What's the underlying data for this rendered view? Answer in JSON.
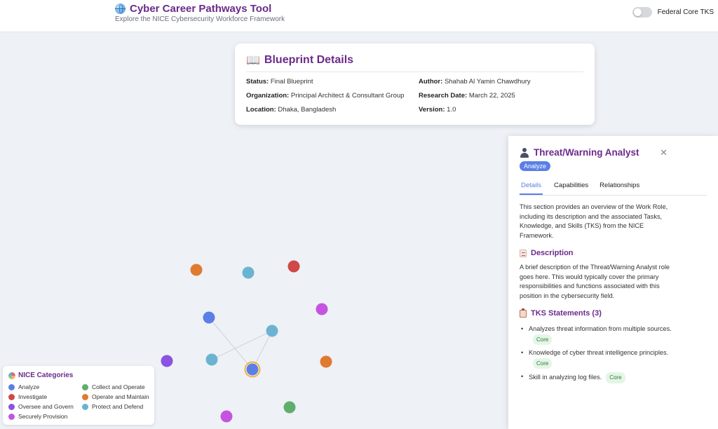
{
  "header": {
    "title": "Cyber Career Pathways Tool",
    "subtitle": "Explore the NICE Cybersecurity Workforce Framework",
    "toggle_label": "Federal Core TKS"
  },
  "blueprint": {
    "title": "Blueprint Details",
    "fields": [
      {
        "label": "Status:",
        "value": "Final Blueprint"
      },
      {
        "label": "Author:",
        "value": "Shahab Al Yamin Chawdhury"
      },
      {
        "label": "Organization:",
        "value": "Principal Architect & Consultant Group"
      },
      {
        "label": "Research Date:",
        "value": "March 22, 2025"
      },
      {
        "label": "Location:",
        "value": "Dhaka, Bangladesh"
      },
      {
        "label": "Version:",
        "value": "1.0"
      }
    ]
  },
  "legend": {
    "title": "NICE Categories",
    "items": [
      {
        "label": "Analyze",
        "color": "#5b7fe6"
      },
      {
        "label": "Collect and Operate",
        "color": "#5fae6e"
      },
      {
        "label": "Investigate",
        "color": "#d04848"
      },
      {
        "label": "Operate and Maintain",
        "color": "#e07a30"
      },
      {
        "label": "Oversee and Govern",
        "color": "#8a52e0"
      },
      {
        "label": "Protect and Defend",
        "color": "#6ab4d2"
      },
      {
        "label": "Securely Provision",
        "color": "#c454e0"
      }
    ]
  },
  "panel": {
    "title": "Threat/Warning Analyst",
    "badge": "Analyze",
    "close": "✕",
    "tabs": [
      "Details",
      "Capabilities",
      "Relationships"
    ],
    "intro": "This section provides an overview of the Work Role, including its description and the associated Tasks, Knowledge, and Skills (TKS) from the NICE Framework.",
    "description_heading": "Description",
    "description": "A brief description of the Threat/Warning Analyst role goes here. This would typically cover the primary responsibilities and functions associated with this position in the cybersecurity field.",
    "tks_heading": "TKS Statements (3)",
    "tks": [
      {
        "text": "Analyzes threat information from multiple sources.",
        "tag": "Core"
      },
      {
        "text": "Knowledge of cyber threat intelligence principles.",
        "tag": "Core"
      },
      {
        "text": "Skill in analyzing log files.",
        "tag": "Core"
      }
    ]
  },
  "graph": {
    "nodes": [
      {
        "category": "Operate and Maintain",
        "color": "#e07a30",
        "selected": false
      },
      {
        "category": "Protect and Defend",
        "color": "#6ab4d2",
        "selected": false
      },
      {
        "category": "Investigate",
        "color": "#d04848",
        "selected": false
      },
      {
        "category": "Securely Provision",
        "color": "#c454e0",
        "selected": false
      },
      {
        "category": "Analyze",
        "color": "#5b7fe6",
        "selected": false
      },
      {
        "category": "Protect and Defend",
        "color": "#6ab4d2",
        "selected": false
      },
      {
        "category": "Oversee and Govern",
        "color": "#8a52e0",
        "selected": false
      },
      {
        "category": "Protect and Defend",
        "color": "#6ab4d2",
        "selected": false
      },
      {
        "category": "Analyze",
        "color": "#5b7fe6",
        "selected": true
      },
      {
        "category": "Operate and Maintain",
        "color": "#e07a30",
        "selected": false
      },
      {
        "category": "Collect and Operate",
        "color": "#5fae6e",
        "selected": false
      },
      {
        "category": "Securely Provision",
        "color": "#c454e0",
        "selected": false
      }
    ]
  }
}
